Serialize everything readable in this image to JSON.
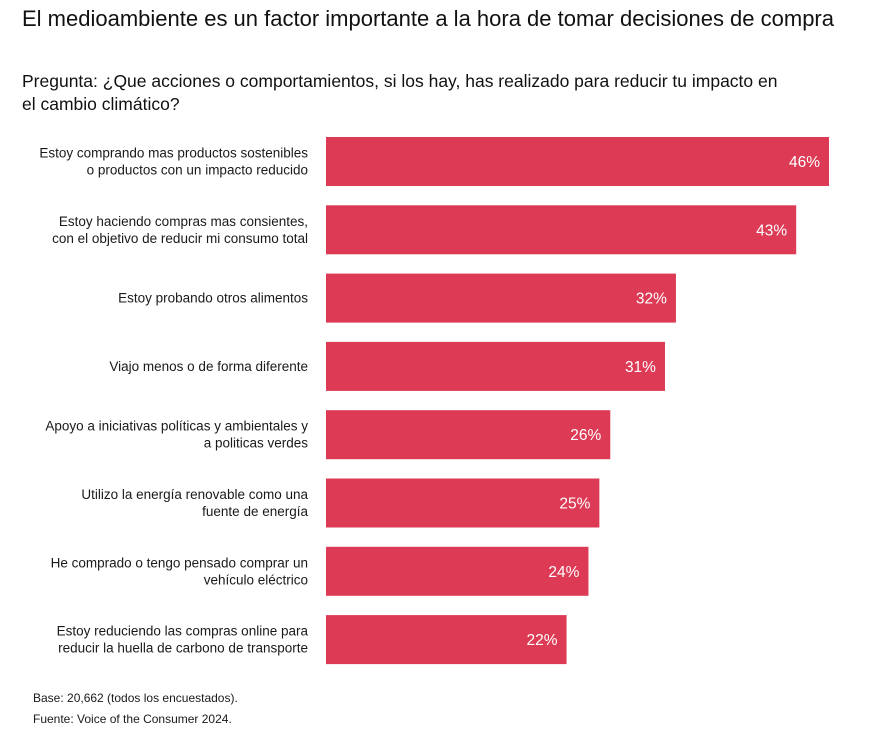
{
  "header": {
    "title": "El medioambiente es un factor importante a la hora de tomar decisiones de compra",
    "subtitle": "Pregunta: ¿Que acciones o comportamientos, si los hay, has realizado para reducir tu impacto en el cambio climático?"
  },
  "footer": {
    "base": "Base: 20,662 (todos los encuestados).",
    "source": "Fuente: Voice of the Consumer 2024."
  },
  "chart_data": {
    "type": "bar",
    "orientation": "horizontal",
    "bar_color": "#dc3a55",
    "value_label_color": "#ffffff",
    "value_suffix": "%",
    "xlim": [
      0,
      46
    ],
    "grid": false,
    "legend": "none",
    "categories": [
      [
        "Estoy comprando mas productos sostenibles",
        "o productos con un impacto reducido"
      ],
      [
        "Estoy haciendo compras mas consientes,",
        "con el objetivo de reducir mi consumo total"
      ],
      [
        "Estoy probando otros alimentos"
      ],
      [
        "Viajo menos o de forma diferente"
      ],
      [
        "Apoyo a iniciativas políticas y ambientales y",
        "a politicas verdes"
      ],
      [
        "Utilizo la energía renovable como una",
        "fuente de energía"
      ],
      [
        "He comprado o tengo pensado comprar un",
        "vehículo eléctrico"
      ],
      [
        "Estoy reduciendo las compras online para",
        "reducir la huella de carbono de transporte"
      ]
    ],
    "values": [
      46,
      43,
      32,
      31,
      26,
      25,
      24,
      22
    ]
  }
}
